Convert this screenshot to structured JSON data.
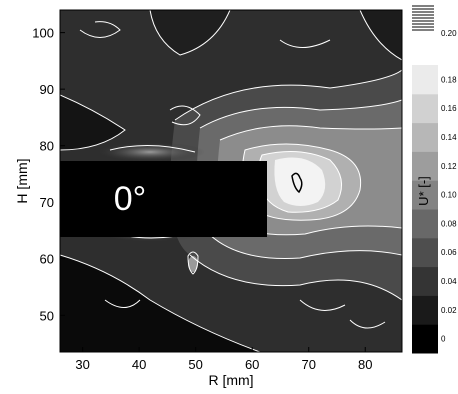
{
  "chart_data": {
    "type": "heatmap",
    "title": "",
    "xlabel": "R [mm]",
    "ylabel": "H [mm]",
    "xlim": [
      26,
      86.5
    ],
    "ylim": [
      43.5,
      104
    ],
    "x_ticks": [
      30,
      40,
      50,
      60,
      70,
      80
    ],
    "y_ticks": [
      50,
      60,
      70,
      80,
      90,
      100
    ],
    "colorbar": {
      "label": "U* [-]",
      "range": [
        0,
        0.2
      ],
      "ticks": [
        "0",
        "0.02",
        "0.04",
        "0.06",
        "0.08",
        "0.10",
        "0.12",
        "0.14",
        "0.16",
        "0.18",
        "0.20"
      ]
    },
    "annotation": {
      "text": "0°",
      "box_x_range": [
        26,
        63
      ],
      "box_y_range": [
        64,
        77.5
      ],
      "color": "#000000",
      "text_color": "#ffffff"
    },
    "colors": {
      "low": "#000000",
      "high": "#f5f5f5",
      "contour": "#ffffff"
    }
  }
}
